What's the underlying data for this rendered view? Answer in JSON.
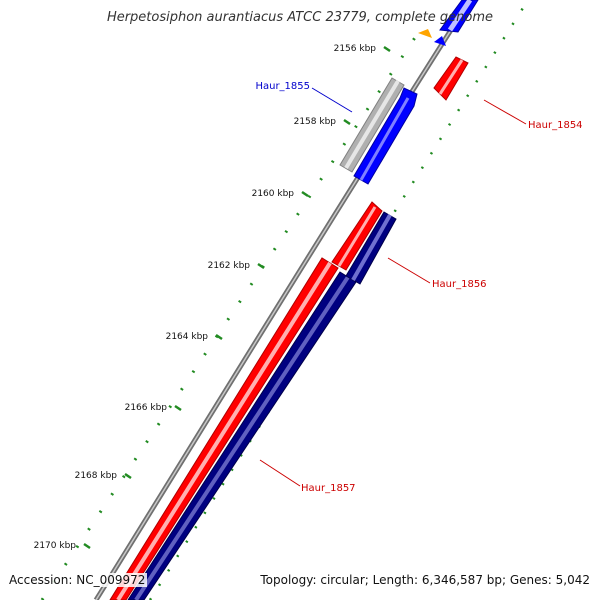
{
  "title": "Herpetosiphon aurantiacus ATCC 23779, complete genome",
  "footer": {
    "accession": "Accession: NC_009972",
    "summary": "Topology: circular; Length: 6,346,587 bp; Genes: 5,042"
  },
  "colors": {
    "forward_cds": "#ff0000",
    "reverse_cds": "#000080",
    "blue_cds": "#0000ff",
    "pseudo": "#b0b0b0",
    "backbone": "#808080",
    "tick": "#228b22",
    "label_red": "#cc0000",
    "label_blue": "#0000cc",
    "orange": "#ffa500"
  },
  "ticks": [
    {
      "label": "2156 kbp"
    },
    {
      "label": "2158 kbp"
    },
    {
      "label": "2160 kbp"
    },
    {
      "label": "2162 kbp"
    },
    {
      "label": "2164 kbp"
    },
    {
      "label": "2166 kbp"
    },
    {
      "label": "2168 kbp"
    },
    {
      "label": "2170 kbp"
    }
  ],
  "genes": [
    {
      "name": "Haur_1854",
      "color": "label_red"
    },
    {
      "name": "Haur_1855",
      "color": "label_blue"
    },
    {
      "name": "Haur_1856",
      "color": "label_red"
    },
    {
      "name": "Haur_1857",
      "color": "label_red"
    }
  ]
}
